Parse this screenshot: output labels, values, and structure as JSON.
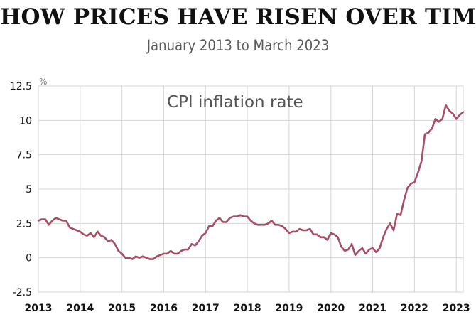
{
  "title": "HOW PRICES HAVE RISEN OVER TIME",
  "subtitle": "January 2013 to March 2023",
  "chart_data": {
    "type": "line",
    "title": "HOW PRICES HAVE RISEN OVER TIME",
    "subtitle": "January 2013 to March 2023",
    "series": [
      {
        "name": "CPI inflation rate",
        "color": "#a84d66",
        "x": [
          "2013-01",
          "2013-02",
          "2013-03",
          "2013-04",
          "2013-05",
          "2013-06",
          "2013-07",
          "2013-08",
          "2013-09",
          "2013-10",
          "2013-11",
          "2013-12",
          "2014-01",
          "2014-02",
          "2014-03",
          "2014-04",
          "2014-05",
          "2014-06",
          "2014-07",
          "2014-08",
          "2014-09",
          "2014-10",
          "2014-11",
          "2014-12",
          "2015-01",
          "2015-02",
          "2015-03",
          "2015-04",
          "2015-05",
          "2015-06",
          "2015-07",
          "2015-08",
          "2015-09",
          "2015-10",
          "2015-11",
          "2015-12",
          "2016-01",
          "2016-02",
          "2016-03",
          "2016-04",
          "2016-05",
          "2016-06",
          "2016-07",
          "2016-08",
          "2016-09",
          "2016-10",
          "2016-11",
          "2016-12",
          "2017-01",
          "2017-02",
          "2017-03",
          "2017-04",
          "2017-05",
          "2017-06",
          "2017-07",
          "2017-08",
          "2017-09",
          "2017-10",
          "2017-11",
          "2017-12",
          "2018-01",
          "2018-02",
          "2018-03",
          "2018-04",
          "2018-05",
          "2018-06",
          "2018-07",
          "2018-08",
          "2018-09",
          "2018-10",
          "2018-11",
          "2018-12",
          "2019-01",
          "2019-02",
          "2019-03",
          "2019-04",
          "2019-05",
          "2019-06",
          "2019-07",
          "2019-08",
          "2019-09",
          "2019-10",
          "2019-11",
          "2019-12",
          "2020-01",
          "2020-02",
          "2020-03",
          "2020-04",
          "2020-05",
          "2020-06",
          "2020-07",
          "2020-08",
          "2020-09",
          "2020-10",
          "2020-11",
          "2020-12",
          "2021-01",
          "2021-02",
          "2021-03",
          "2021-04",
          "2021-05",
          "2021-06",
          "2021-07",
          "2021-08",
          "2021-09",
          "2021-10",
          "2021-11",
          "2021-12",
          "2022-01",
          "2022-02",
          "2022-03",
          "2022-04",
          "2022-05",
          "2022-06",
          "2022-07",
          "2022-08",
          "2022-09",
          "2022-10",
          "2022-11",
          "2022-12",
          "2023-01",
          "2023-02",
          "2023-03"
        ],
        "values": [
          2.7,
          2.8,
          2.8,
          2.4,
          2.7,
          2.9,
          2.8,
          2.7,
          2.7,
          2.2,
          2.1,
          2.0,
          1.9,
          1.7,
          1.6,
          1.8,
          1.5,
          1.9,
          1.6,
          1.5,
          1.2,
          1.3,
          1.0,
          0.5,
          0.3,
          0.0,
          0.0,
          -0.1,
          0.1,
          0.0,
          0.1,
          0.0,
          -0.1,
          -0.1,
          0.1,
          0.2,
          0.3,
          0.3,
          0.5,
          0.3,
          0.3,
          0.5,
          0.6,
          0.6,
          1.0,
          0.9,
          1.2,
          1.6,
          1.8,
          2.3,
          2.3,
          2.7,
          2.9,
          2.6,
          2.6,
          2.9,
          3.0,
          3.0,
          3.1,
          3.0,
          3.0,
          2.7,
          2.5,
          2.4,
          2.4,
          2.4,
          2.5,
          2.7,
          2.4,
          2.4,
          2.3,
          2.1,
          1.8,
          1.9,
          1.9,
          2.1,
          2.0,
          2.0,
          2.1,
          1.7,
          1.7,
          1.5,
          1.5,
          1.3,
          1.8,
          1.7,
          1.5,
          0.8,
          0.5,
          0.6,
          1.0,
          0.2,
          0.5,
          0.7,
          0.3,
          0.6,
          0.7,
          0.4,
          0.7,
          1.5,
          2.1,
          2.5,
          2.0,
          3.2,
          3.1,
          4.2,
          5.1,
          5.4,
          5.5,
          6.2,
          7.0,
          9.0,
          9.1,
          9.4,
          10.1,
          9.9,
          10.1,
          11.1,
          10.7,
          10.5,
          10.1,
          10.4,
          10.6
        ]
      }
    ],
    "y_ticks": [
      "12.5",
      "10",
      "7.5",
      "5",
      "2.5",
      "0",
      "-2.5"
    ],
    "y_unit": "%",
    "x_ticks": [
      "2013",
      "2014",
      "2015",
      "2016",
      "2017",
      "2018",
      "2019",
      "2020",
      "2021",
      "2022",
      "2023"
    ],
    "xlim": [
      "2013-01",
      "2023-03"
    ],
    "ylim": [
      -2.5,
      12.5
    ],
    "grid": true,
    "annotation": "CPI inflation rate"
  }
}
